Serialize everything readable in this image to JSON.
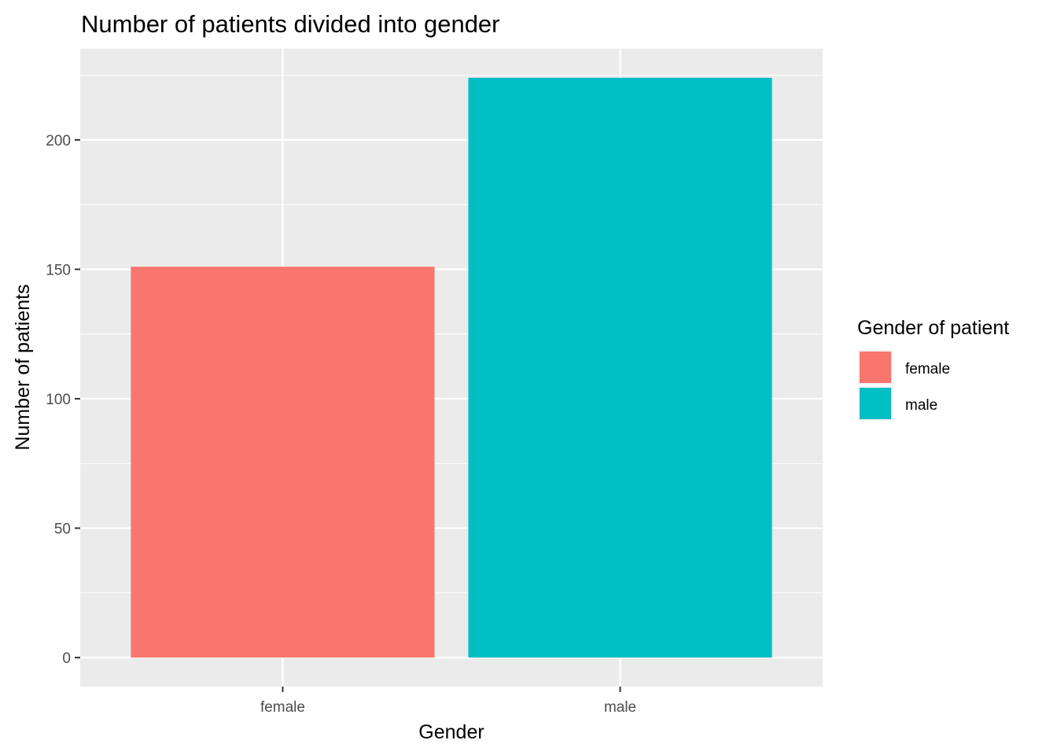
{
  "chart_data": {
    "type": "bar",
    "title": "Number of patients divided into gender",
    "xlabel": "Gender",
    "ylabel": "Number of patients",
    "categories": [
      "female",
      "male"
    ],
    "values": [
      151,
      224
    ],
    "colors": [
      "#F8766D",
      "#00BFC4"
    ],
    "ylim": [
      -11.2,
      235.2
    ],
    "yticks": [
      0,
      50,
      100,
      150,
      200
    ],
    "yticks_labels": [
      "0",
      "50",
      "100",
      "150",
      "200"
    ],
    "grid": true,
    "panel_background": "#EBEBEB",
    "legend": {
      "title": "Gender of patient",
      "placement": "right",
      "entries": [
        "female",
        "male"
      ]
    }
  }
}
